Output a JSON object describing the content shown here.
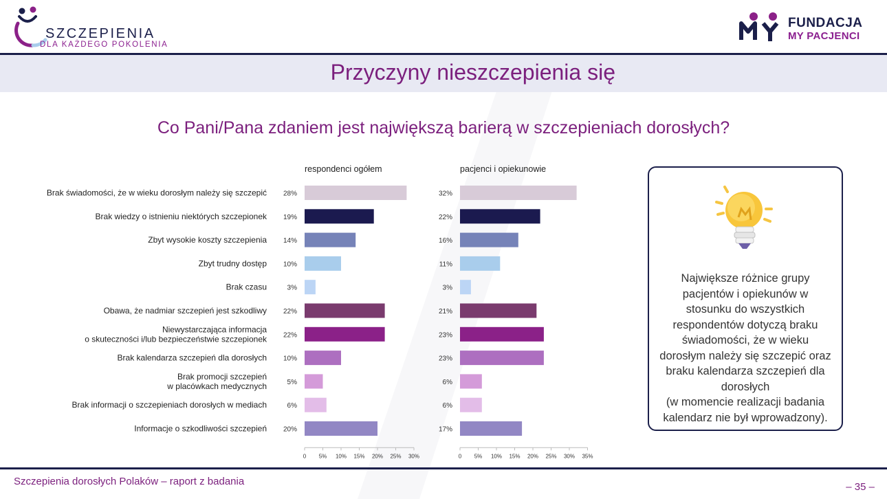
{
  "header": {
    "logo_left": {
      "brand": "SZCZEPIENIA",
      "sub": "DLA KAŻDEGO POKOLENIA"
    },
    "logo_right": {
      "line1": "FUNDACJA",
      "line2": "MY PACJENCI"
    }
  },
  "page_title": "Przyczyny nieszczepienia się",
  "question": "Co Pani/Pana zdaniem jest największą barierą w szczepieniach dorosłych?",
  "callout": {
    "icon": "lightbulb-icon",
    "text_lines": [
      "Największe różnice grupy",
      "pacjentów i opiekunów w",
      "stosunku do wszystkich",
      "respondentów dotyczą braku",
      "świadomości, że w wieku",
      "dorosłym należy się szczepić oraz",
      "braku kalendarza szczepień dla",
      "dorosłych",
      "(w momencie realizacji badania",
      "kalendarz nie był wprowadzony)."
    ]
  },
  "footer": {
    "left": "Szczepienia dorosłych Polaków – raport z badania",
    "page": "– 35 –"
  },
  "chart_data": {
    "type": "bar",
    "orientation": "horizontal",
    "categories": [
      [
        "Brak świadomości, że w wieku dorosłym należy się szczepić"
      ],
      [
        "Brak wiedzy o istnieniu niektórych szczepionek"
      ],
      [
        "Zbyt wysokie koszty szczepienia"
      ],
      [
        "Zbyt trudny dostęp"
      ],
      [
        "Brak czasu"
      ],
      [
        "Obawa, że nadmiar szczepień jest szkodliwy"
      ],
      [
        "Niewystarczająca informacja",
        "o skuteczności i/lub bezpieczeństwie szczepionek"
      ],
      [
        "Brak kalendarza szczepień dla dorosłych"
      ],
      [
        "Brak promocji szczepień",
        "w placówkach medycznych"
      ],
      [
        "Brak informacji o szczepieniach dorosłych w mediach"
      ],
      [
        "Informacje o szkodliwości szczepień"
      ]
    ],
    "bar_colors": [
      "#d8cbd8",
      "#1b1a4f",
      "#7683b8",
      "#a9cdec",
      "#bcd5f5",
      "#7a3b6e",
      "#8b2188",
      "#ad6fc0",
      "#d49bd9",
      "#e3bde8",
      "#9287c4"
    ],
    "series": [
      {
        "name": "respondenci ogółem",
        "values": [
          28,
          19,
          14,
          10,
          3,
          22,
          22,
          10,
          5,
          6,
          20
        ],
        "labels": [
          "28%",
          "19%",
          "14%",
          "10%",
          "3%",
          "22%",
          "22%",
          "10%",
          "5%",
          "6%",
          "20%"
        ],
        "ticks": [
          "0",
          "5%",
          "10%",
          "15%",
          "20%",
          "25%",
          "30%"
        ],
        "xlim": [
          0,
          30
        ]
      },
      {
        "name": "pacjenci i opiekunowie",
        "values": [
          32,
          22,
          16,
          11,
          3,
          21,
          23,
          23,
          6,
          6,
          17
        ],
        "labels": [
          "32%",
          "22%",
          "16%",
          "11%",
          "3%",
          "21%",
          "23%",
          "23%",
          "6%",
          "6%",
          "17%"
        ],
        "ticks": [
          "0",
          "5%",
          "10%",
          "15%",
          "20%",
          "25%",
          "30%",
          "35%"
        ],
        "xlim": [
          0,
          35
        ]
      }
    ]
  }
}
